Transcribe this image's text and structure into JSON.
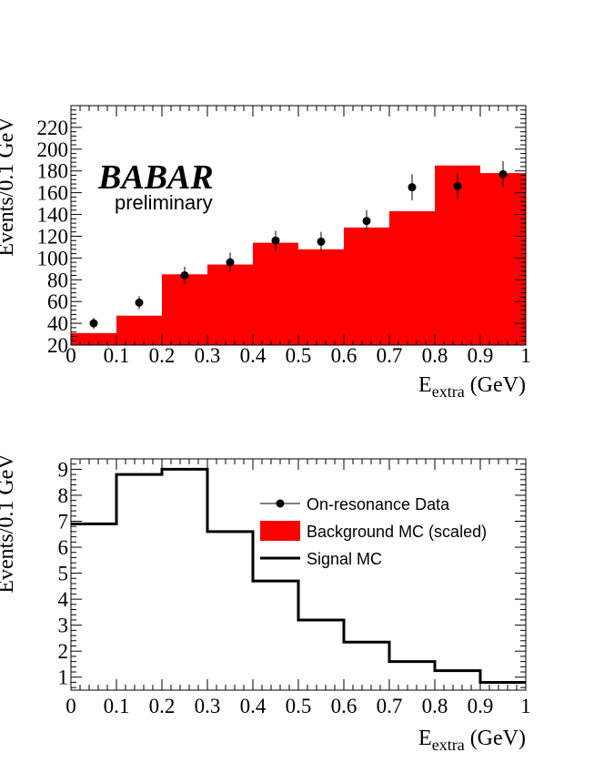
{
  "logo": {
    "text": "BABAR",
    "subtitle": "preliminary"
  },
  "chart_data": [
    {
      "type": "bar",
      "xlabel": "E",
      "xlabel_sub": "extra",
      "xlabel_unit": " (GeV)",
      "ylabel": "Events/0.1 GeV",
      "xlim": [
        0,
        1
      ],
      "ylim": [
        20,
        240
      ],
      "x_ticks": [
        0,
        0.1,
        0.2,
        0.3,
        0.4,
        0.5,
        0.6,
        0.7,
        0.8,
        0.9,
        1
      ],
      "x_tick_labels": [
        "0",
        "0.1",
        "0.2",
        "0.3",
        "0.4",
        "0.5",
        "0.6",
        "0.7",
        "0.8",
        "0.9",
        "1"
      ],
      "y_ticks": [
        20,
        40,
        60,
        80,
        100,
        120,
        140,
        160,
        180,
        200,
        220
      ],
      "y_tick_labels": [
        "20",
        "40",
        "60",
        "80",
        "100",
        "120",
        "140",
        "160",
        "180",
        "200",
        "220"
      ],
      "bin_edges": [
        0,
        0.1,
        0.2,
        0.3,
        0.4,
        0.5,
        0.6,
        0.7,
        0.8,
        0.9,
        1.0
      ],
      "background_mc": [
        31,
        47,
        85,
        94,
        114,
        108,
        128,
        143,
        185,
        178
      ],
      "data_points": {
        "x": [
          0.05,
          0.15,
          0.25,
          0.35,
          0.45,
          0.55,
          0.65,
          0.75,
          0.85,
          0.95
        ],
        "y": [
          40,
          59,
          84,
          96,
          116,
          115,
          134,
          165,
          166,
          177
        ],
        "err": [
          5,
          6,
          8,
          9,
          9,
          9,
          10,
          12,
          12,
          12
        ]
      },
      "colors": {
        "background": "#ff0000",
        "data": "#000000"
      }
    },
    {
      "type": "line",
      "xlabel": "E",
      "xlabel_sub": "extra",
      "xlabel_unit": " (GeV)",
      "ylabel": "Events/0.1 GeV",
      "xlim": [
        0,
        1
      ],
      "ylim": [
        0.5,
        9.4
      ],
      "x_ticks": [
        0,
        0.1,
        0.2,
        0.3,
        0.4,
        0.5,
        0.6,
        0.7,
        0.8,
        0.9,
        1
      ],
      "x_tick_labels": [
        "0",
        "0.1",
        "0.2",
        "0.3",
        "0.4",
        "0.5",
        "0.6",
        "0.7",
        "0.8",
        "0.9",
        "1"
      ],
      "y_ticks": [
        1,
        2,
        3,
        4,
        5,
        6,
        7,
        8,
        9
      ],
      "y_tick_labels": [
        "1",
        "2",
        "3",
        "4",
        "5",
        "6",
        "7",
        "8",
        "9"
      ],
      "bin_edges": [
        0,
        0.1,
        0.2,
        0.3,
        0.4,
        0.5,
        0.6,
        0.7,
        0.8,
        0.9,
        1.0
      ],
      "signal_mc": [
        6.9,
        8.8,
        9.0,
        6.6,
        4.7,
        3.2,
        2.35,
        1.6,
        1.25,
        0.8
      ],
      "legend": [
        {
          "label": "On-resonance Data",
          "kind": "marker"
        },
        {
          "label": "Background MC (scaled)",
          "kind": "fill"
        },
        {
          "label": "Signal MC",
          "kind": "line"
        }
      ],
      "legend_position": "top-right",
      "colors": {
        "signal": "#000000",
        "background": "#ff0000"
      }
    }
  ]
}
